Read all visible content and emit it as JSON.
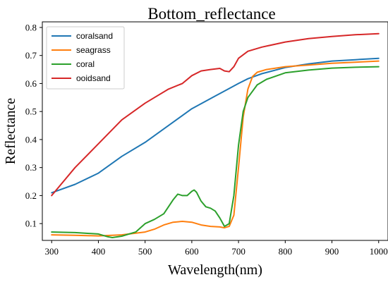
{
  "chart_data": {
    "type": "line",
    "title": "Bottom_reflectance",
    "xlabel": "Wavelength(nm)",
    "ylabel": "Reflectance",
    "xlim": [
      280,
      1020
    ],
    "ylim": [
      0.04,
      0.82
    ],
    "xticks": [
      300,
      400,
      500,
      600,
      700,
      800,
      900,
      1000
    ],
    "xtick_labels": [
      "300",
      "400",
      "500",
      "600",
      "700",
      "800",
      "900",
      "1000"
    ],
    "yticks": [
      0.1,
      0.2,
      0.3,
      0.4,
      0.5,
      0.6,
      0.7,
      0.8
    ],
    "ytick_labels": [
      "0.1",
      "0.2",
      "0.3",
      "0.4",
      "0.5",
      "0.6",
      "0.7",
      "0.8"
    ],
    "grid": false,
    "legend_position": "top-left",
    "series": [
      {
        "name": "coralsand",
        "color": "#1f77b4",
        "x": [
          300,
          350,
          400,
          450,
          500,
          550,
          600,
          650,
          700,
          720,
          750,
          800,
          850,
          900,
          950,
          1000
        ],
        "y": [
          0.21,
          0.24,
          0.28,
          0.34,
          0.39,
          0.45,
          0.51,
          0.555,
          0.6,
          0.617,
          0.635,
          0.657,
          0.67,
          0.68,
          0.685,
          0.69
        ]
      },
      {
        "name": "seagrass",
        "color": "#ff7f0e",
        "x": [
          300,
          350,
          400,
          450,
          500,
          520,
          540,
          560,
          580,
          600,
          620,
          640,
          660,
          670,
          680,
          690,
          700,
          710,
          720,
          730,
          740,
          760,
          800,
          850,
          900,
          950,
          1000
        ],
        "y": [
          0.06,
          0.058,
          0.056,
          0.06,
          0.07,
          0.08,
          0.095,
          0.105,
          0.108,
          0.105,
          0.095,
          0.09,
          0.088,
          0.085,
          0.09,
          0.13,
          0.3,
          0.48,
          0.58,
          0.625,
          0.64,
          0.65,
          0.66,
          0.666,
          0.672,
          0.676,
          0.68
        ]
      },
      {
        "name": "coral",
        "color": "#2ca02c",
        "x": [
          300,
          350,
          400,
          420,
          430,
          450,
          480,
          500,
          520,
          540,
          560,
          570,
          580,
          590,
          600,
          605,
          610,
          620,
          630,
          640,
          650,
          660,
          670,
          680,
          690,
          700,
          710,
          720,
          740,
          760,
          800,
          850,
          900,
          950,
          1000
        ],
        "y": [
          0.07,
          0.068,
          0.063,
          0.053,
          0.05,
          0.055,
          0.07,
          0.1,
          0.115,
          0.135,
          0.185,
          0.205,
          0.2,
          0.2,
          0.215,
          0.22,
          0.212,
          0.18,
          0.16,
          0.155,
          0.145,
          0.12,
          0.09,
          0.1,
          0.2,
          0.38,
          0.5,
          0.55,
          0.595,
          0.615,
          0.638,
          0.648,
          0.655,
          0.658,
          0.66
        ]
      },
      {
        "name": "ooidsand",
        "color": "#d62728",
        "x": [
          300,
          350,
          400,
          450,
          500,
          550,
          580,
          600,
          620,
          640,
          660,
          670,
          680,
          690,
          700,
          720,
          750,
          800,
          850,
          900,
          950,
          1000
        ],
        "y": [
          0.2,
          0.3,
          0.385,
          0.47,
          0.53,
          0.58,
          0.6,
          0.628,
          0.645,
          0.65,
          0.654,
          0.645,
          0.642,
          0.66,
          0.69,
          0.715,
          0.73,
          0.748,
          0.76,
          0.768,
          0.774,
          0.778
        ]
      }
    ]
  }
}
